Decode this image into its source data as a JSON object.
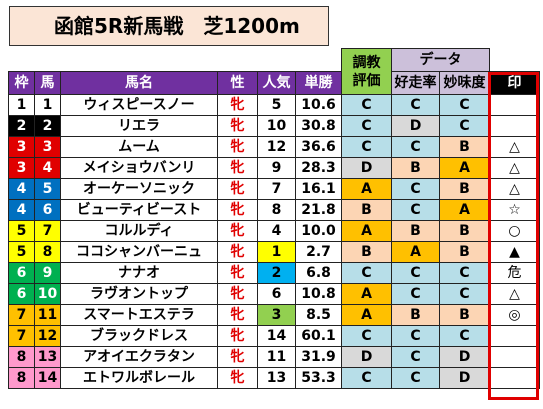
{
  "title": "函館5R新馬戦　芝1200m",
  "group_headers": {
    "training": "調教",
    "training2": "評価",
    "data": "データ"
  },
  "headers": [
    "枠",
    "馬",
    "馬名",
    "性",
    "人気",
    "単勝",
    "評価",
    "好走率",
    "妙味度",
    "印"
  ],
  "frame_colors": {
    "1": {
      "bg": "#ffffff",
      "fg": "#000000"
    },
    "2": {
      "bg": "#000000",
      "fg": "#ffffff"
    },
    "3": {
      "bg": "#e00000",
      "fg": "#ffffff"
    },
    "4": {
      "bg": "#0070c0",
      "fg": "#ffffff"
    },
    "5": {
      "bg": "#ffff00",
      "fg": "#000000"
    },
    "6": {
      "bg": "#00b050",
      "fg": "#ffffff"
    },
    "7": {
      "bg": "#ffc000",
      "fg": "#000000"
    },
    "8": {
      "bg": "#ff99cc",
      "fg": "#000000"
    }
  },
  "rows": [
    {
      "waku": "1",
      "uma": "1",
      "name": "ウィスピースノー",
      "sex": "牝",
      "pop": "5",
      "odds": "10.6",
      "eval": "C",
      "rate": "C",
      "value": "C",
      "mark": ""
    },
    {
      "waku": "2",
      "uma": "2",
      "name": "リエラ",
      "sex": "牝",
      "pop": "10",
      "odds": "30.8",
      "eval": "C",
      "rate": "D",
      "value": "C",
      "mark": ""
    },
    {
      "waku": "3",
      "uma": "3",
      "name": "ムーム",
      "sex": "牝",
      "pop": "12",
      "odds": "36.6",
      "eval": "C",
      "rate": "C",
      "value": "B",
      "mark": "△"
    },
    {
      "waku": "3",
      "uma": "4",
      "name": "メイショウバンリ",
      "sex": "牝",
      "pop": "9",
      "odds": "28.3",
      "eval": "D",
      "rate": "B",
      "value": "A",
      "mark": "△"
    },
    {
      "waku": "4",
      "uma": "5",
      "name": "オーケーソニック",
      "sex": "牝",
      "pop": "7",
      "odds": "16.1",
      "eval": "A",
      "rate": "C",
      "value": "B",
      "mark": "△"
    },
    {
      "waku": "4",
      "uma": "6",
      "name": "ビューティビースト",
      "sex": "牝",
      "pop": "8",
      "odds": "21.8",
      "eval": "B",
      "rate": "C",
      "value": "A",
      "mark": "☆"
    },
    {
      "waku": "5",
      "uma": "7",
      "name": "コルルディ",
      "sex": "牝",
      "pop": "4",
      "odds": "10.0",
      "eval": "A",
      "rate": "B",
      "value": "B",
      "mark": "○"
    },
    {
      "waku": "5",
      "uma": "8",
      "name": "ココシャンバーニュ",
      "sex": "牝",
      "pop": "1",
      "odds": "2.7",
      "eval": "B",
      "rate": "A",
      "value": "B",
      "mark": "▲"
    },
    {
      "waku": "6",
      "uma": "9",
      "name": "ナナオ",
      "sex": "牝",
      "pop": "2",
      "odds": "6.8",
      "eval": "C",
      "rate": "C",
      "value": "C",
      "mark": "危"
    },
    {
      "waku": "6",
      "uma": "10",
      "name": "ラヴオントップ",
      "sex": "牝",
      "pop": "6",
      "odds": "10.8",
      "eval": "A",
      "rate": "C",
      "value": "C",
      "mark": "△"
    },
    {
      "waku": "7",
      "uma": "11",
      "name": "スマートエステラ",
      "sex": "牝",
      "pop": "3",
      "odds": "8.5",
      "eval": "A",
      "rate": "B",
      "value": "B",
      "mark": "◎"
    },
    {
      "waku": "7",
      "uma": "12",
      "name": "ブラックドレス",
      "sex": "牝",
      "pop": "14",
      "odds": "60.1",
      "eval": "C",
      "rate": "C",
      "value": "C",
      "mark": ""
    },
    {
      "waku": "8",
      "uma": "13",
      "name": "アオイエクラタン",
      "sex": "牝",
      "pop": "11",
      "odds": "31.9",
      "eval": "D",
      "rate": "C",
      "value": "D",
      "mark": ""
    },
    {
      "waku": "8",
      "uma": "14",
      "name": "エトワルボレール",
      "sex": "牝",
      "pop": "13",
      "odds": "53.3",
      "eval": "C",
      "rate": "C",
      "value": "D",
      "mark": ""
    }
  ]
}
